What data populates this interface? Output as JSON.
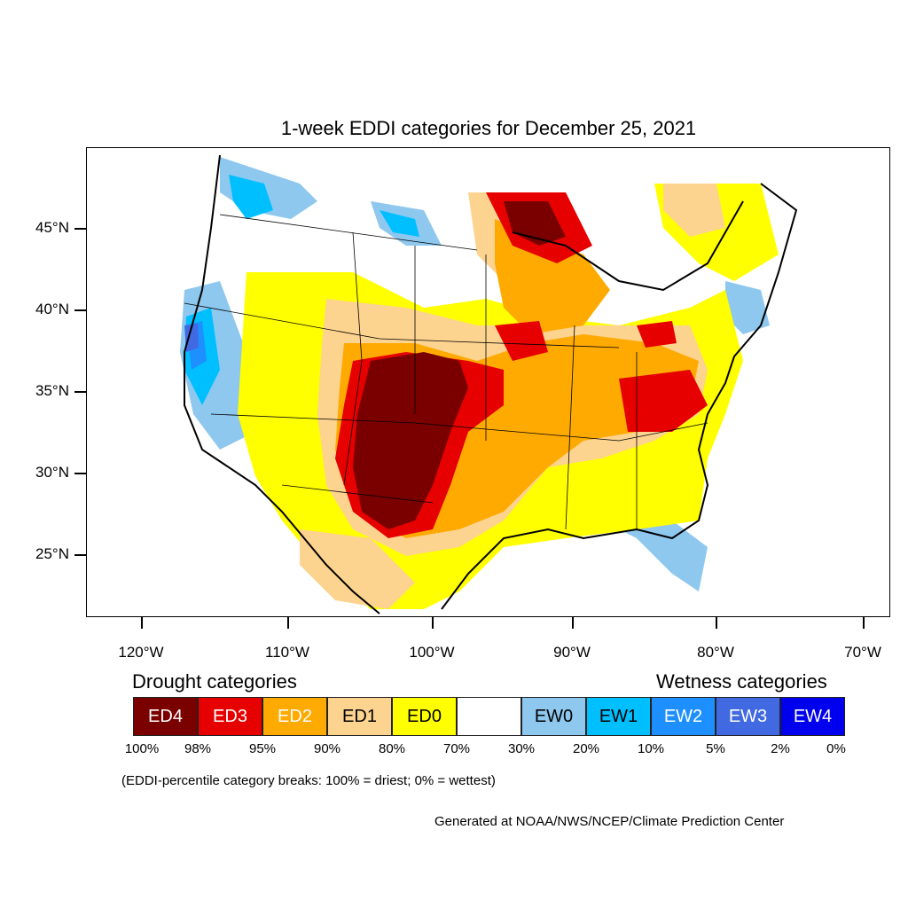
{
  "title": "1-week EDDI categories for December 25, 2021",
  "axes": {
    "lat_labels": [
      "45°N",
      "40°N",
      "35°N",
      "30°N",
      "25°N"
    ],
    "lon_labels": [
      "120°W",
      "110°W",
      "100°W",
      "90°W",
      "80°W",
      "70°W"
    ]
  },
  "legend": {
    "drought_heading": "Drought categories",
    "wetness_heading": "Wetness categories",
    "categories": [
      {
        "label": "ED4",
        "color": "#7a0000",
        "text_color": "#ffffff"
      },
      {
        "label": "ED3",
        "color": "#e60000",
        "text_color": "#ffffff"
      },
      {
        "label": "ED2",
        "color": "#ffaa00",
        "text_color": "#ffffff"
      },
      {
        "label": "ED1",
        "color": "#fcd38f",
        "text_color": "#000000"
      },
      {
        "label": "ED0",
        "color": "#ffff00",
        "text_color": "#000000"
      },
      {
        "label": "",
        "color": "#ffffff",
        "text_color": "#000000"
      },
      {
        "label": "EW0",
        "color": "#8ec8ef",
        "text_color": "#000000"
      },
      {
        "label": "EW1",
        "color": "#00bfff",
        "text_color": "#000000"
      },
      {
        "label": "EW2",
        "color": "#1e8fff",
        "text_color": "#ffffff"
      },
      {
        "label": "EW3",
        "color": "#4169e1",
        "text_color": "#ffffff"
      },
      {
        "label": "EW4",
        "color": "#0000ee",
        "text_color": "#ffffff"
      }
    ],
    "percent_breaks": [
      "100%",
      "98%",
      "95%",
      "90%",
      "80%",
      "70%",
      "30%",
      "20%",
      "10%",
      "5%",
      "2%",
      "0%"
    ]
  },
  "note": "(EDDI-percentile category breaks: 100% = driest; 0% = wettest)",
  "credit": "Generated at NOAA/NWS/NCEP/Climate Prediction Center"
}
